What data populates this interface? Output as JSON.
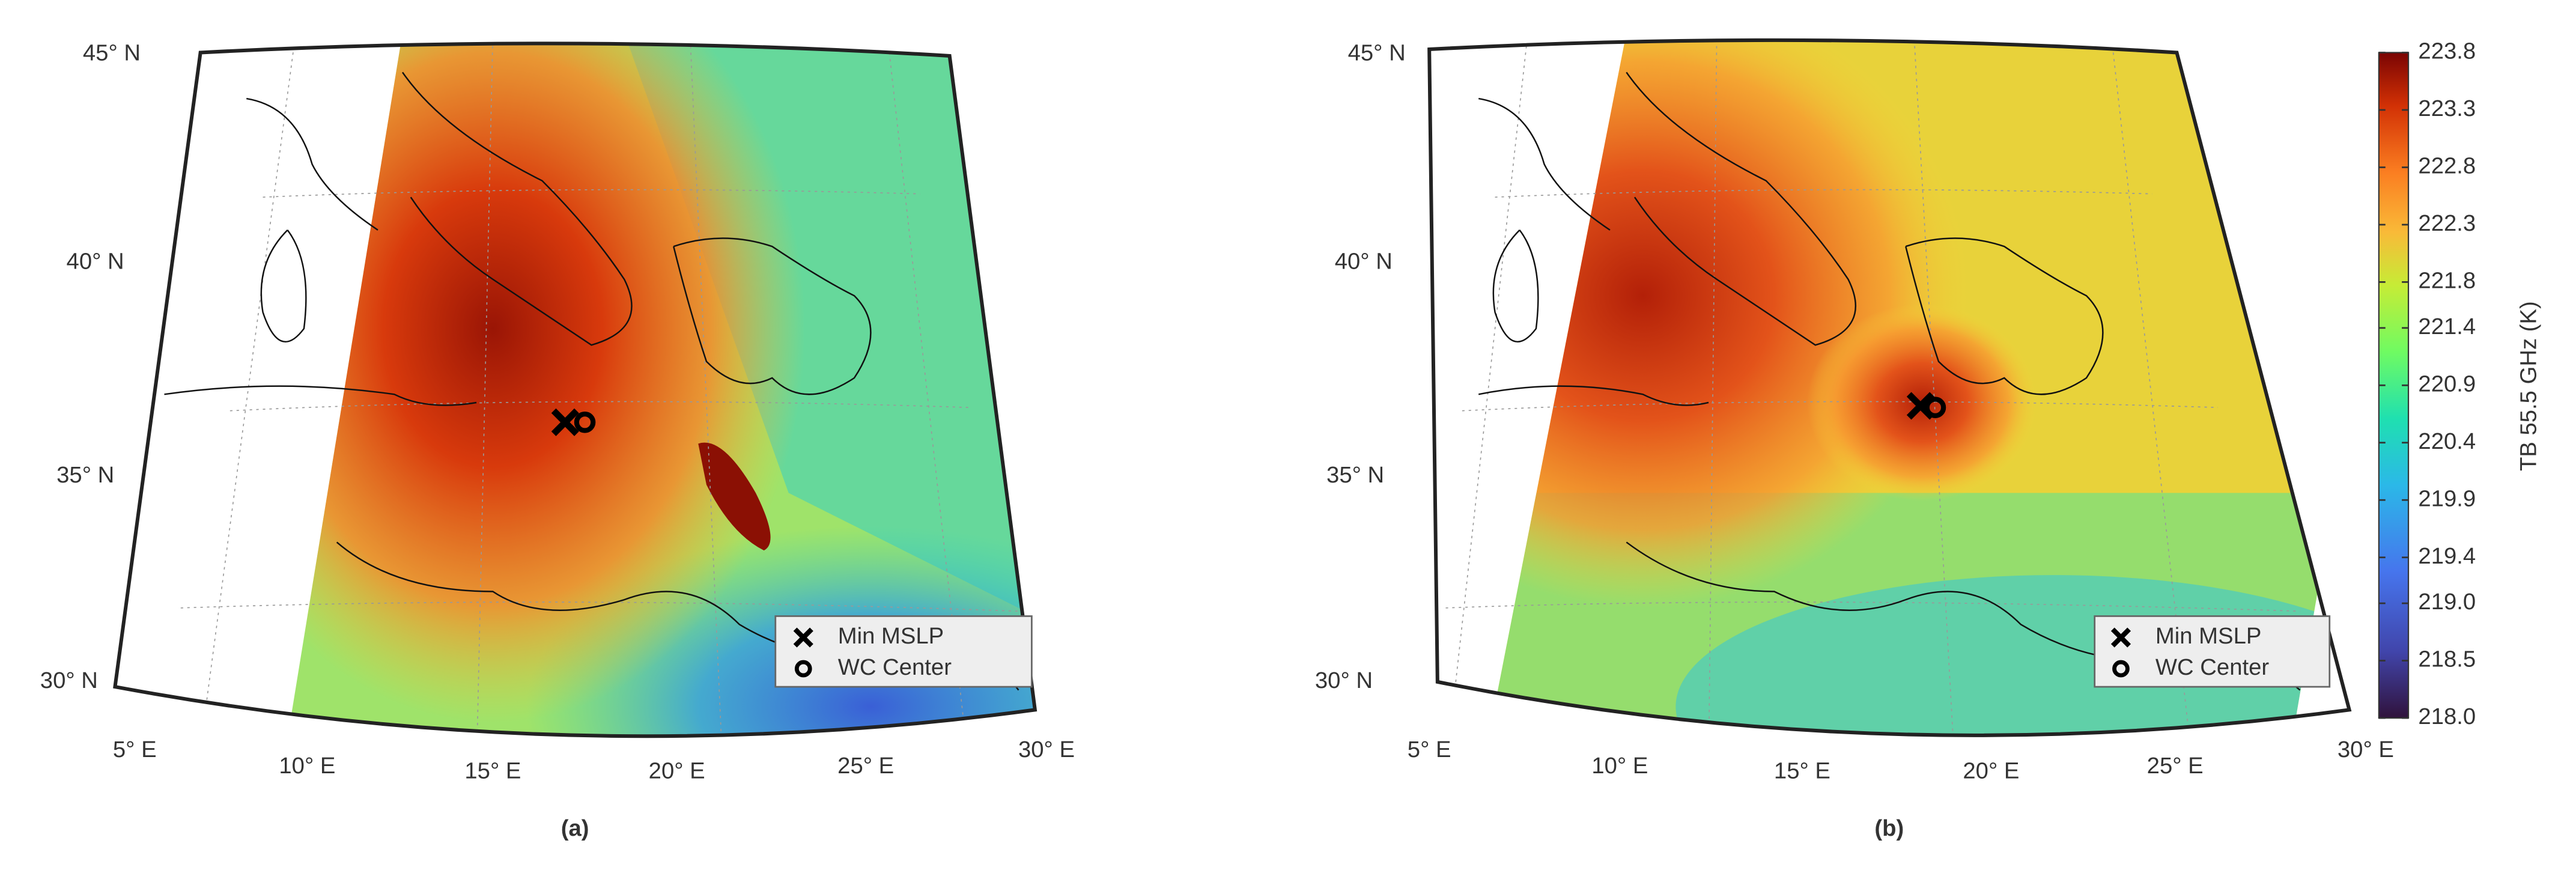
{
  "panels": [
    {
      "label": "(a)",
      "lat_labels": [
        "45° N",
        "40° N",
        "35° N",
        "30° N"
      ],
      "lon_labels": [
        "5° E",
        "10° E",
        "15° E",
        "20° E",
        "25° E",
        "30° E"
      ],
      "legend": [
        "Min MSLP",
        "WC Center"
      ]
    },
    {
      "label": "(b)",
      "lat_labels": [
        "45° N",
        "40° N",
        "35° N",
        "30° N"
      ],
      "lon_labels": [
        "5° E",
        "10° E",
        "15° E",
        "20° E",
        "25° E",
        "30° E"
      ],
      "legend": [
        "Min MSLP",
        "WC Center"
      ]
    }
  ],
  "colorbar": {
    "label": "TB 55.5 GHz (K)",
    "clim": [
      218,
      223.8
    ],
    "ticks": [
      223.8,
      223.3,
      222.8,
      222.3,
      221.8,
      221.4,
      220.9,
      220.4,
      219.9,
      219.4,
      {
        "value": 219,
        "label": "219.0"
      },
      218.5,
      {
        "value": 218,
        "label": "218.0"
      }
    ]
  }
}
